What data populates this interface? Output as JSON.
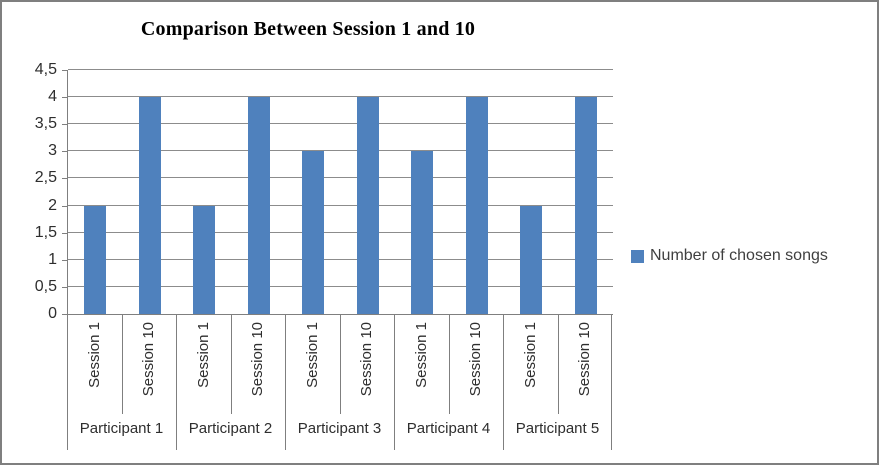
{
  "window": {
    "background": "#ffffff",
    "border_color": "#7f7f7f"
  },
  "chart_data": {
    "type": "bar",
    "title": "Comparison Between Session 1 and 10",
    "xlabel": "",
    "ylabel": "",
    "ylim": [
      0,
      4.5
    ],
    "y_tick_step": 0.5,
    "decimal_separator": ",",
    "y_tick_labels": [
      "0",
      "0,5",
      "1",
      "1,5",
      "2",
      "2,5",
      "3",
      "3,5",
      "4",
      "4,5"
    ],
    "grid": true,
    "gridline_color": "#8c8c8c",
    "axis_line_color": "#7f7f7f",
    "bar_color": "#4F81BD",
    "series": [
      {
        "name": "Number of chosen songs",
        "color": "#4F81BD"
      }
    ],
    "groups": [
      {
        "label": "Participant 1",
        "bars": [
          {
            "label": "Session 1",
            "value": 2
          },
          {
            "label": "Session 10",
            "value": 4
          }
        ]
      },
      {
        "label": "Participant 2",
        "bars": [
          {
            "label": "Session 1",
            "value": 2
          },
          {
            "label": "Session 10",
            "value": 4
          }
        ]
      },
      {
        "label": "Participant 3",
        "bars": [
          {
            "label": "Session 1",
            "value": 3
          },
          {
            "label": "Session 10",
            "value": 4
          }
        ]
      },
      {
        "label": "Participant 4",
        "bars": [
          {
            "label": "Session 1",
            "value": 3
          },
          {
            "label": "Session 10",
            "value": 4
          }
        ]
      },
      {
        "label": "Participant 5",
        "bars": [
          {
            "label": "Session 1",
            "value": 2
          },
          {
            "label": "Session 10",
            "value": 4
          }
        ]
      }
    ],
    "legend": {
      "position": "right",
      "entries": [
        {
          "label": "Number of chosen songs",
          "swatch_color": "#4F81BD"
        }
      ]
    }
  }
}
